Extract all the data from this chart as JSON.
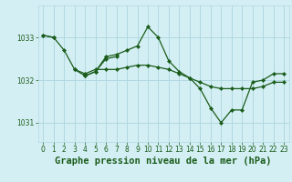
{
  "title": "Graphe pression niveau de la mer (hPa)",
  "background_color": "#d4eff4",
  "grid_color": "#b0d8e0",
  "line_color": "#1a5c1a",
  "ylim": [
    1030.55,
    1033.75
  ],
  "yticks": [
    1031,
    1032,
    1033
  ],
  "xlim": [
    -0.5,
    23.5
  ],
  "xticks": [
    0,
    1,
    2,
    3,
    4,
    5,
    6,
    7,
    8,
    9,
    10,
    11,
    12,
    13,
    14,
    15,
    16,
    17,
    18,
    19,
    20,
    21,
    22,
    23
  ],
  "series": [
    [
      1033.05,
      1033.0,
      null,
      null,
      null,
      null,
      null,
      null,
      null,
      null,
      null,
      null,
      null,
      null,
      null,
      null,
      null,
      null,
      null,
      null,
      null,
      null,
      null,
      null
    ],
    [
      1033.05,
      1033.0,
      1032.7,
      1032.25,
      1032.15,
      1032.25,
      1032.25,
      1032.25,
      1032.3,
      1032.35,
      1032.35,
      1032.3,
      1032.25,
      1032.15,
      1032.05,
      1031.95,
      1031.85,
      1031.8,
      1031.8,
      1031.8,
      1031.8,
      1031.85,
      1031.95,
      1031.95
    ],
    [
      null,
      null,
      null,
      null,
      1032.1,
      1032.2,
      1032.55,
      1032.6,
      1032.7,
      1032.8,
      1033.25,
      1033.0,
      1032.45,
      1032.2,
      1032.05,
      1031.8,
      1031.35,
      1031.0,
      1031.3,
      1031.3,
      1031.95,
      1032.0,
      1032.15,
      1032.15
    ],
    [
      null,
      null,
      null,
      1032.25,
      1032.1,
      1032.2,
      1032.5,
      1032.55,
      null,
      null,
      null,
      null,
      null,
      null,
      null,
      null,
      null,
      null,
      null,
      null,
      null,
      null,
      null,
      null
    ]
  ],
  "linewidth": 0.9,
  "markersize": 2.2,
  "tick_fontsize": 5.5,
  "title_fontsize": 7.5
}
